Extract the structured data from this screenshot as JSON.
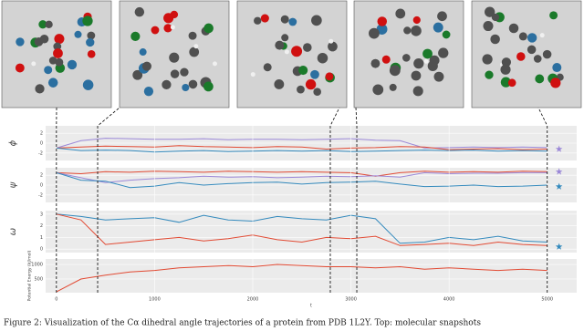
{
  "figure": {
    "caption": "Figure 2: Visualization of the Cα dihedral angle trajectories of a protein from PDB 1L2Y. Top: molecular snapshots",
    "snapshot_t": [
      0,
      420,
      2790,
      3060,
      5000
    ]
  },
  "chart_data": [
    {
      "type": "line",
      "ylabel": "ϕ",
      "x": [
        0,
        250,
        500,
        750,
        1000,
        1250,
        1500,
        1750,
        2000,
        2250,
        2500,
        2750,
        3000,
        3250,
        3500,
        3750,
        4000,
        4250,
        4500,
        4750,
        5000
      ],
      "series": [
        {
          "color": "#9b88d8",
          "values": [
            -1,
            0.5,
            1,
            0.9,
            0.8,
            0.8,
            0.9,
            0.7,
            0.8,
            0.8,
            0.7,
            0.8,
            0.9,
            0.6,
            0.5,
            -1,
            -0.9,
            -0.8,
            -0.9,
            -0.8,
            -0.9
          ]
        },
        {
          "color": "#e24a33",
          "values": [
            -1,
            -0.8,
            -0.6,
            -0.7,
            -0.8,
            -0.5,
            -0.7,
            -0.8,
            -0.9,
            -0.7,
            -0.8,
            -1.2,
            -1,
            -0.9,
            -0.7,
            -0.8,
            -1.3,
            -1.2,
            -1.1,
            -1.3,
            -1.2
          ]
        },
        {
          "color": "#348abd",
          "values": [
            -1,
            -1.5,
            -1.4,
            -1.5,
            -1.8,
            -1.6,
            -1.5,
            -1.7,
            -1.6,
            -1.5,
            -1.6,
            -1.5,
            -1.7,
            -1.6,
            -1.5,
            -1.4,
            -1.5,
            -1.4,
            -1.6,
            -1.5,
            -1.6
          ]
        }
      ],
      "targets": {
        "x": 5120,
        "values": [
          -1.2
        ],
        "colors": [
          "#9b88d8"
        ]
      },
      "xlim": [
        -110,
        5300
      ],
      "ylim": [
        -3.5,
        3.5
      ],
      "yticks": [
        -2,
        0,
        2
      ],
      "grid": true
    },
    {
      "type": "line",
      "ylabel": "ψ",
      "x": [
        0,
        250,
        500,
        750,
        1000,
        1250,
        1500,
        1750,
        2000,
        2250,
        2500,
        2750,
        3000,
        3250,
        3500,
        3750,
        4000,
        4250,
        4500,
        4750,
        5000
      ],
      "series": [
        {
          "color": "#e24a33",
          "values": [
            2.5,
            2.3,
            2.7,
            2.6,
            2.8,
            2.7,
            2.6,
            2.8,
            2.7,
            2.6,
            2.7,
            2.6,
            2.5,
            1.8,
            2.5,
            2.8,
            2.6,
            2.7,
            2.6,
            2.8,
            2.7
          ]
        },
        {
          "color": "#9b88d8",
          "values": [
            2.5,
            1.5,
            0.5,
            1,
            1.3,
            1.5,
            1.8,
            1.6,
            1.7,
            1.5,
            1.6,
            1.8,
            1.7,
            1.9,
            1.6,
            2.5,
            2.3,
            2.4,
            2.4,
            2.5,
            2.5
          ]
        },
        {
          "color": "#348abd",
          "values": [
            2.5,
            1,
            0.8,
            -0.5,
            -0.2,
            0.5,
            0,
            0.3,
            0.5,
            0.6,
            0.2,
            0.5,
            0.6,
            0.8,
            0.2,
            -0.3,
            -0.2,
            0,
            -0.3,
            -0.2,
            0
          ]
        }
      ],
      "targets": {
        "x": 5120,
        "values": [
          2.7,
          -0.3
        ],
        "colors": [
          "#9b88d8",
          "#348abd"
        ]
      },
      "xlim": [
        -110,
        5300
      ],
      "ylim": [
        -3.5,
        3.5
      ],
      "yticks": [
        -2,
        0,
        2
      ],
      "grid": true
    },
    {
      "type": "line",
      "ylabel": "ω",
      "x": [
        0,
        250,
        500,
        750,
        1000,
        1250,
        1500,
        1750,
        2000,
        2250,
        2500,
        2750,
        3000,
        3250,
        3500,
        3750,
        4000,
        4250,
        4500,
        4750,
        5000
      ],
      "series": [
        {
          "color": "#348abd",
          "values": [
            3,
            2.8,
            2.5,
            2.6,
            2.7,
            2.3,
            2.9,
            2.5,
            2.4,
            2.8,
            2.6,
            2.5,
            2.9,
            2.6,
            0.5,
            0.6,
            1,
            0.8,
            1.1,
            0.7,
            0.6
          ]
        },
        {
          "color": "#e24a33",
          "values": [
            3,
            2.5,
            0.4,
            0.6,
            0.8,
            1,
            0.7,
            0.9,
            1.2,
            0.8,
            0.6,
            1,
            0.9,
            1.1,
            0.3,
            0.4,
            0.5,
            0.3,
            0.6,
            0.4,
            0.3
          ]
        }
      ],
      "targets": {
        "x": 5120,
        "values": [
          0.2
        ],
        "colors": [
          "#348abd"
        ]
      },
      "xlim": [
        -110,
        5300
      ],
      "ylim": [
        -0.3,
        3.3
      ],
      "yticks": [
        0,
        1,
        2,
        3
      ],
      "grid": true
    },
    {
      "type": "line",
      "ylabel": "Potential Energy (kJ/mol)",
      "xlabel": "t",
      "x": [
        0,
        250,
        500,
        750,
        1000,
        1250,
        1500,
        1750,
        2000,
        2250,
        2500,
        2750,
        3000,
        3250,
        3500,
        3750,
        4000,
        4250,
        4500,
        4750,
        5000
      ],
      "series": [
        {
          "color": "#e24a33",
          "values": [
            270,
            500,
            600,
            700,
            750,
            850,
            900,
            950,
            900,
            1000,
            950,
            900,
            900,
            850,
            900,
            800,
            850,
            800,
            750,
            800,
            750
          ]
        }
      ],
      "xlim": [
        -110,
        5300
      ],
      "ylim": [
        260,
        1300
      ],
      "log": true,
      "yticks": [
        500,
        1000
      ],
      "xticks": [
        0,
        1000,
        2000,
        3000,
        4000,
        5000
      ],
      "grid": true
    }
  ]
}
